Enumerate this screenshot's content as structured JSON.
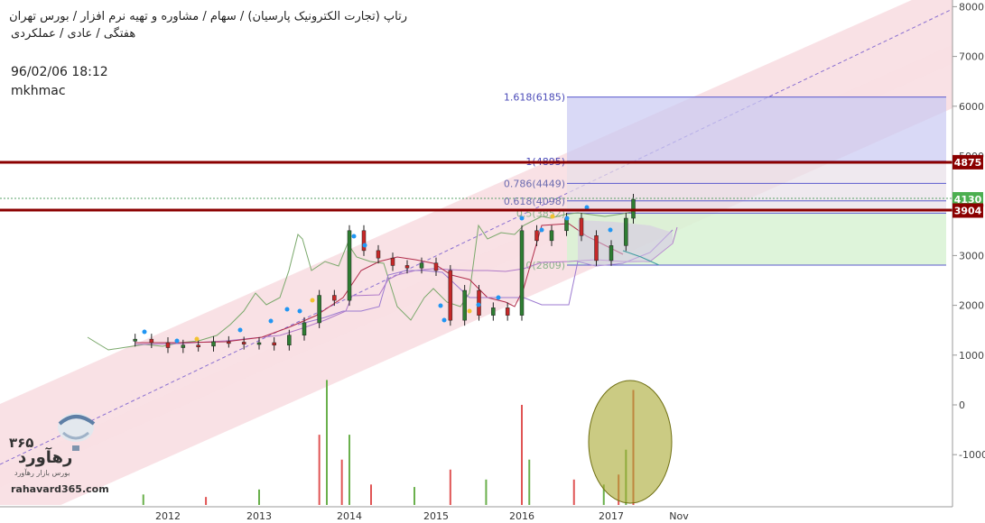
{
  "header": {
    "line1": "رتاپ (تجارت الکترونیک پارسیان) / سهام / مشاوره و تهیه نرم افزار / بورس تهران",
    "line2": "هفتگی / عادی / عملکردی",
    "timestamp": "96/02/06 18:12",
    "author": "mkhmac"
  },
  "logo": {
    "number": "۳۶۵",
    "name": "رهآورد",
    "tagline": "بورس بازار رهآورد",
    "url": "rahavard365.com"
  },
  "colors": {
    "candle_up": "#2e7d32",
    "candle_down": "#c62828",
    "channel_fill": "#f4c9cf",
    "resistance_line": "#8b0000",
    "fib_blue": "#5a5acd",
    "volume_highlight": "#9a9a1e"
  },
  "chart_data": {
    "type": "candlestick",
    "x_labels": [
      "2012",
      "2013",
      "2014",
      "2015",
      "2016",
      "2017",
      "Nov"
    ],
    "y_ticks": [
      8000,
      7000,
      6000,
      5000,
      4000,
      3000,
      2000,
      1000,
      0,
      -1000
    ],
    "ylim": [
      -2000,
      8000
    ],
    "current_price": 4130,
    "price_tags": [
      {
        "label": "4875",
        "value": 4875,
        "color": "#8b0000"
      },
      {
        "label": "4130",
        "value": 4130,
        "color": "#4caf50"
      },
      {
        "label": "3904",
        "value": 3904,
        "color": "#8b0000"
      }
    ],
    "horizontal_levels": [
      {
        "name": "resistance-upper",
        "value": 4875,
        "color": "#8b0000"
      },
      {
        "name": "resistance-lower",
        "value": 3904,
        "color": "#8b0000"
      }
    ],
    "fibonacci": [
      {
        "label": "1.618(6185)",
        "value": 6185
      },
      {
        "label": "1(4895)",
        "value": 4895
      },
      {
        "label": "0.786(4449)",
        "value": 4449
      },
      {
        "label": "0.618(4098)",
        "value": 4098
      },
      {
        "label": "0.5(3852)",
        "value": 3852
      },
      {
        "label": "0(2809)",
        "value": 2809
      }
    ],
    "price_series": [
      {
        "date": "2011-09",
        "open": 1280,
        "close": 1320
      },
      {
        "date": "2011-11",
        "open": 1320,
        "close": 1250
      },
      {
        "date": "2012-01",
        "open": 1250,
        "close": 1150
      },
      {
        "date": "2012-03",
        "open": 1150,
        "close": 1200
      },
      {
        "date": "2012-05",
        "open": 1200,
        "close": 1180
      },
      {
        "date": "2012-07",
        "open": 1180,
        "close": 1270
      },
      {
        "date": "2012-09",
        "open": 1270,
        "close": 1260
      },
      {
        "date": "2012-11",
        "open": 1260,
        "close": 1220
      },
      {
        "date": "2013-01",
        "open": 1220,
        "close": 1250
      },
      {
        "date": "2013-03",
        "open": 1250,
        "close": 1200
      },
      {
        "date": "2013-05",
        "open": 1200,
        "close": 1400
      },
      {
        "date": "2013-07",
        "open": 1400,
        "close": 1650
      },
      {
        "date": "2013-09",
        "open": 1650,
        "close": 2200
      },
      {
        "date": "2013-11",
        "open": 2200,
        "close": 2100
      },
      {
        "date": "2014-01",
        "open": 2100,
        "close": 3500
      },
      {
        "date": "2014-03",
        "open": 3500,
        "close": 3100
      },
      {
        "date": "2014-05",
        "open": 3100,
        "close": 2950
      },
      {
        "date": "2014-07",
        "open": 2950,
        "close": 2800
      },
      {
        "date": "2014-09",
        "open": 2800,
        "close": 2750
      },
      {
        "date": "2014-11",
        "open": 2750,
        "close": 2850
      },
      {
        "date": "2015-01",
        "open": 2850,
        "close": 2700
      },
      {
        "date": "2015-03",
        "open": 2700,
        "close": 1700
      },
      {
        "date": "2015-05",
        "open": 1700,
        "close": 2300
      },
      {
        "date": "2015-07",
        "open": 2300,
        "close": 1800
      },
      {
        "date": "2015-09",
        "open": 1800,
        "close": 1950
      },
      {
        "date": "2015-11",
        "open": 1950,
        "close": 1800
      },
      {
        "date": "2016-01",
        "open": 1800,
        "close": 3500
      },
      {
        "date": "2016-03",
        "open": 3500,
        "close": 3300
      },
      {
        "date": "2016-05",
        "open": 3300,
        "close": 3500
      },
      {
        "date": "2016-07",
        "open": 3500,
        "close": 3750
      },
      {
        "date": "2016-09",
        "open": 3750,
        "close": 3400
      },
      {
        "date": "2016-11",
        "open": 3400,
        "close": 2900
      },
      {
        "date": "2017-01",
        "open": 2900,
        "close": 3200
      },
      {
        "date": "2017-03",
        "open": 3200,
        "close": 3750
      },
      {
        "date": "2017-04",
        "open": 3750,
        "close": 4130
      }
    ],
    "volume_series": [
      {
        "date": "2011-10",
        "value": -1800
      },
      {
        "date": "2012-06",
        "value": -1850
      },
      {
        "date": "2013-01",
        "value": -1700
      },
      {
        "date": "2013-09",
        "value": -600
      },
      {
        "date": "2013-10",
        "value": 500
      },
      {
        "date": "2013-12",
        "value": -1100
      },
      {
        "date": "2014-01",
        "value": -600
      },
      {
        "date": "2014-04",
        "value": -1600
      },
      {
        "date": "2014-10",
        "value": -1650
      },
      {
        "date": "2015-03",
        "value": -1300
      },
      {
        "date": "2015-08",
        "value": -1500
      },
      {
        "date": "2016-01",
        "value": 0
      },
      {
        "date": "2016-02",
        "value": -1100
      },
      {
        "date": "2016-08",
        "value": -1500
      },
      {
        "date": "2016-12",
        "value": -1600
      },
      {
        "date": "2017-02",
        "value": -1400
      },
      {
        "date": "2017-03",
        "value": -900
      },
      {
        "date": "2017-04",
        "value": 300
      }
    ]
  }
}
